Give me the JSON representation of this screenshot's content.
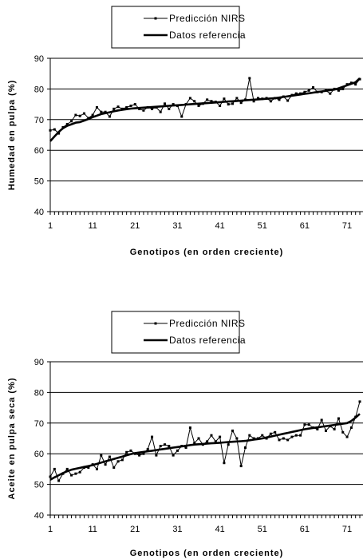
{
  "chart_data": [
    {
      "type": "line",
      "xlabel": "Genotipos (en orden creciente)",
      "ylabel": "Humedad en pulpa (%)",
      "ylim": [
        40,
        90
      ],
      "yticks": [
        40,
        50,
        60,
        70,
        80,
        90
      ],
      "xlim": [
        1,
        74
      ],
      "xticks": [
        1,
        11,
        21,
        31,
        41,
        51,
        61,
        71
      ],
      "grid": "horizontal",
      "legend_position": "top-center",
      "series": [
        {
          "name": "Predicción NIRS",
          "marker": "square",
          "x": [
            1,
            2,
            3,
            4,
            5,
            6,
            7,
            8,
            9,
            10,
            11,
            12,
            13,
            14,
            15,
            16,
            17,
            18,
            19,
            20,
            21,
            22,
            23,
            24,
            25,
            26,
            27,
            28,
            29,
            30,
            31,
            32,
            33,
            34,
            35,
            36,
            37,
            38,
            39,
            40,
            41,
            42,
            43,
            44,
            45,
            46,
            47,
            48,
            49,
            50,
            51,
            52,
            53,
            54,
            55,
            56,
            57,
            58,
            59,
            60,
            61,
            62,
            63,
            64,
            65,
            66,
            67,
            68,
            69,
            70,
            71,
            72,
            73,
            74
          ],
          "values": [
            66.5,
            66.8,
            65.5,
            67.5,
            68.5,
            69.5,
            71.5,
            71.2,
            72,
            70.5,
            71.5,
            74,
            72.5,
            72.5,
            71,
            73.5,
            74.2,
            73.5,
            74,
            74.5,
            75,
            73.5,
            73,
            74,
            73.5,
            74,
            72.5,
            75.2,
            73.5,
            75,
            74.5,
            71,
            75,
            77,
            76,
            74.5,
            75.2,
            76.5,
            76,
            75.8,
            74.5,
            76.8,
            75,
            75.2,
            77,
            75.5,
            76.5,
            83.5,
            76,
            77,
            76.8,
            77,
            76,
            77,
            76.5,
            77.5,
            76.2,
            78,
            78.5,
            78.5,
            79,
            79.5,
            80.5,
            79,
            79,
            79.5,
            78.5,
            80,
            79.5,
            80,
            81.5,
            82,
            81.5,
            83.2
          ]
        },
        {
          "name": "Datos referencia",
          "marker": "none",
          "x": [
            1,
            2,
            3,
            4,
            5,
            6,
            7,
            8,
            9,
            10,
            11,
            12,
            13,
            14,
            15,
            16,
            17,
            18,
            19,
            20,
            21,
            22,
            23,
            24,
            25,
            26,
            27,
            28,
            29,
            30,
            31,
            32,
            33,
            34,
            35,
            36,
            37,
            38,
            39,
            40,
            41,
            42,
            43,
            44,
            45,
            46,
            47,
            48,
            49,
            50,
            51,
            52,
            53,
            54,
            55,
            56,
            57,
            58,
            59,
            60,
            61,
            62,
            63,
            64,
            65,
            66,
            67,
            68,
            69,
            70,
            71,
            72,
            73,
            74
          ],
          "values": [
            63,
            64.5,
            66,
            67.2,
            68,
            68.5,
            69,
            69.2,
            69.7,
            70.2,
            70.8,
            71.3,
            71.8,
            72.1,
            72.4,
            72.7,
            73,
            73.2,
            73.4,
            73.6,
            73.7,
            73.8,
            73.9,
            74,
            74.1,
            74.2,
            74.3,
            74.4,
            74.5,
            74.6,
            74.7,
            74.8,
            74.9,
            75,
            75.1,
            75.2,
            75.3,
            75.4,
            75.5,
            75.6,
            75.7,
            75.8,
            75.9,
            76,
            76.1,
            76.2,
            76.3,
            76.4,
            76.5,
            76.6,
            76.7,
            76.8,
            76.9,
            77,
            77.2,
            77.4,
            77.6,
            77.8,
            78,
            78.2,
            78.4,
            78.6,
            78.8,
            79,
            79.2,
            79.4,
            79.6,
            79.8,
            80.2,
            80.7,
            81.2,
            81.7,
            82.2,
            83.5
          ]
        }
      ]
    },
    {
      "type": "line",
      "xlabel": "Genotipos (en orden creciente)",
      "ylabel": "Aceite en pulpa seca (%)",
      "ylim": [
        40,
        90
      ],
      "yticks": [
        40,
        50,
        60,
        70,
        80,
        90
      ],
      "xlim": [
        1,
        74
      ],
      "xticks": [
        1,
        11,
        21,
        31,
        41,
        51,
        61,
        71
      ],
      "grid": "horizontal",
      "legend_position": "top-center",
      "series": [
        {
          "name": "Predicción NIRS",
          "marker": "square",
          "x": [
            1,
            2,
            3,
            4,
            5,
            6,
            7,
            8,
            9,
            10,
            11,
            12,
            13,
            14,
            15,
            16,
            17,
            18,
            19,
            20,
            21,
            22,
            23,
            24,
            25,
            26,
            27,
            28,
            29,
            30,
            31,
            32,
            33,
            34,
            35,
            36,
            37,
            38,
            39,
            40,
            41,
            42,
            43,
            44,
            45,
            46,
            47,
            48,
            49,
            50,
            51,
            52,
            53,
            54,
            55,
            56,
            57,
            58,
            59,
            60,
            61,
            62,
            63,
            64,
            65,
            66,
            67,
            68,
            69,
            70,
            71,
            72,
            73,
            74
          ],
          "values": [
            52.5,
            55,
            51.2,
            53.5,
            55,
            53,
            53.5,
            54,
            55.5,
            55.5,
            56.5,
            55,
            59.5,
            56.5,
            59,
            55.5,
            57.5,
            58,
            60.5,
            61,
            60,
            59.5,
            60,
            61.5,
            65.5,
            59.5,
            62.5,
            63,
            62.5,
            59.5,
            61,
            62.5,
            62,
            68.5,
            63.5,
            65,
            63,
            64,
            66,
            64,
            65.5,
            57,
            63,
            67.5,
            65,
            56,
            62,
            66,
            65,
            65,
            66,
            65,
            66.5,
            67,
            64.5,
            65,
            64.5,
            65.5,
            66,
            66,
            69.5,
            69.5,
            68.5,
            68,
            71,
            67.5,
            69,
            68,
            71.5,
            67,
            65.5,
            68.5,
            72,
            77
          ]
        },
        {
          "name": "Datos referencia",
          "marker": "none",
          "x": [
            1,
            2,
            3,
            4,
            5,
            6,
            7,
            8,
            9,
            10,
            11,
            12,
            13,
            14,
            15,
            16,
            17,
            18,
            19,
            20,
            21,
            22,
            23,
            24,
            25,
            26,
            27,
            28,
            29,
            30,
            31,
            32,
            33,
            34,
            35,
            36,
            37,
            38,
            39,
            40,
            41,
            42,
            43,
            44,
            45,
            46,
            47,
            48,
            49,
            50,
            51,
            52,
            53,
            54,
            55,
            56,
            57,
            58,
            59,
            60,
            61,
            62,
            63,
            64,
            65,
            66,
            67,
            68,
            69,
            70,
            71,
            72,
            73,
            74
          ],
          "values": [
            51.5,
            52.3,
            53,
            53.7,
            54.3,
            54.8,
            55.1,
            55.4,
            55.7,
            56,
            56.3,
            56.7,
            57.1,
            57.5,
            57.9,
            58.3,
            58.7,
            59.1,
            59.5,
            59.9,
            60.2,
            60.4,
            60.6,
            60.8,
            61,
            61.2,
            61.4,
            61.6,
            61.8,
            62,
            62.2,
            62.4,
            62.6,
            62.8,
            63,
            63.1,
            63.2,
            63.3,
            63.4,
            63.5,
            63.6,
            63.7,
            63.8,
            63.9,
            64,
            64.1,
            64.2,
            64.4,
            64.6,
            64.8,
            65,
            65.3,
            65.6,
            65.9,
            66.2,
            66.5,
            66.8,
            67.1,
            67.4,
            67.7,
            68,
            68.2,
            68.4,
            68.6,
            68.8,
            69,
            69.2,
            69.4,
            69.6,
            69.8,
            70,
            70.7,
            71.8,
            73
          ]
        }
      ]
    }
  ]
}
